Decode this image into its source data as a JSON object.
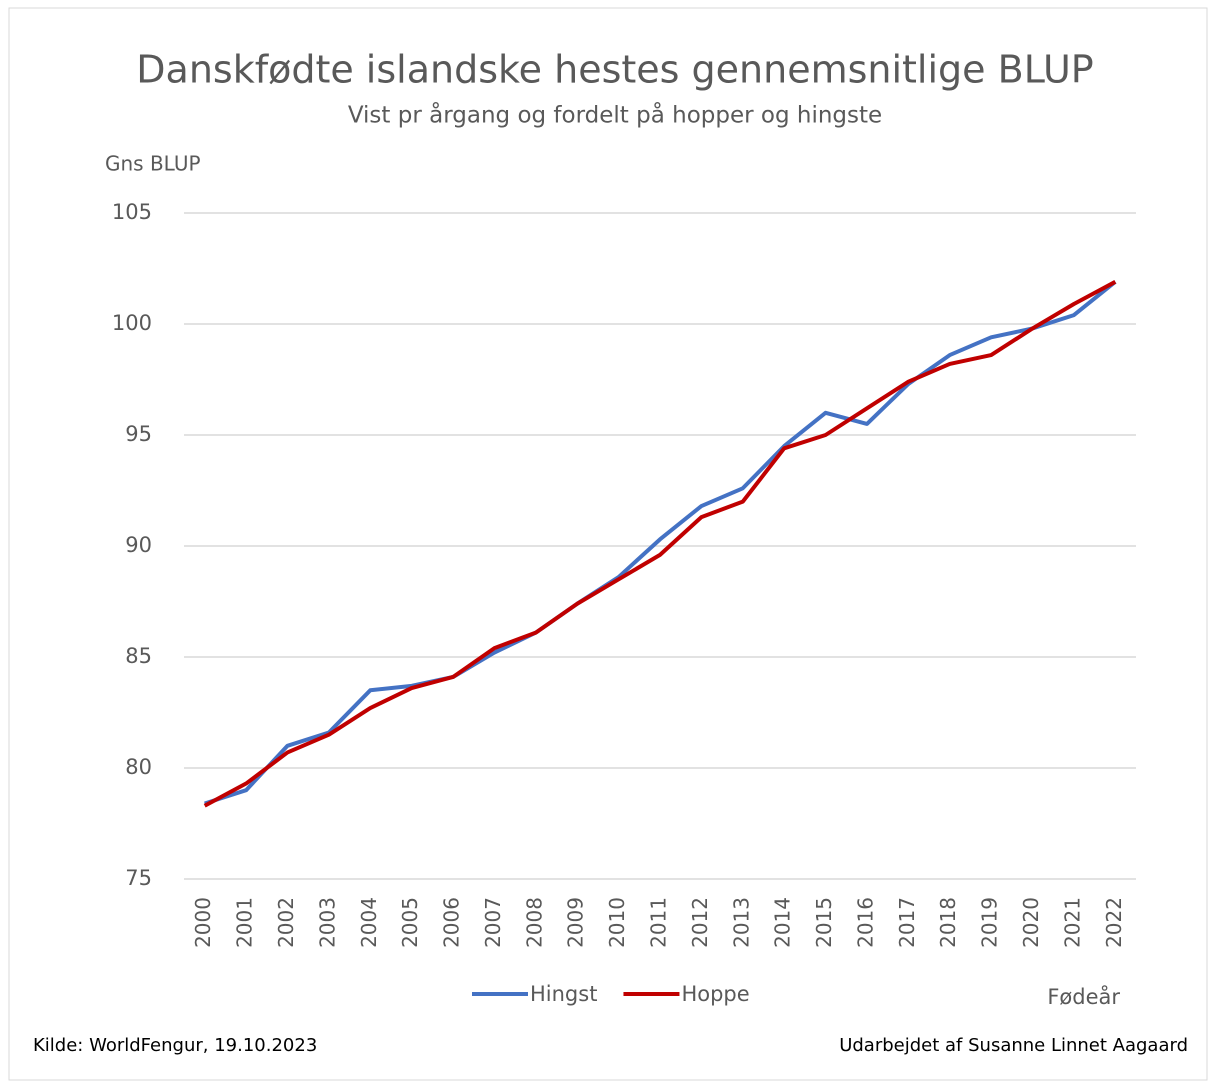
{
  "chart_data": {
    "type": "line",
    "title": "Danskfødte islandske hestes gennemsnitlige BLUP",
    "subtitle": "Vist pr årgang og fordelt på hopper og hingste",
    "y_label": "Gns BLUP",
    "x_label": "Fødeår",
    "source": "Kilde: WorldFengur, 19.10.2023",
    "credit": "Udarbejdet af Susanne Linnet Aagaard",
    "categories": [
      "2000",
      "2001",
      "2002",
      "2003",
      "2004",
      "2005",
      "2006",
      "2007",
      "2008",
      "2009",
      "2010",
      "2011",
      "2012",
      "2013",
      "2014",
      "2015",
      "2016",
      "2017",
      "2018",
      "2019",
      "2020",
      "2021",
      "2022"
    ],
    "series": [
      {
        "name": "Hingst",
        "color": "#4472c4",
        "values": [
          78.4,
          79.0,
          81.0,
          81.6,
          83.5,
          83.7,
          84.1,
          85.2,
          86.1,
          87.4,
          88.6,
          90.3,
          91.8,
          92.6,
          94.5,
          96.0,
          95.5,
          97.3,
          98.6,
          99.4,
          99.8,
          100.4,
          101.9
        ]
      },
      {
        "name": "Hoppe",
        "color": "#c00000",
        "values": [
          78.3,
          79.3,
          80.7,
          81.5,
          82.7,
          83.6,
          84.1,
          85.4,
          86.1,
          87.4,
          88.5,
          89.6,
          91.3,
          92.0,
          94.4,
          95.0,
          96.2,
          97.4,
          98.2,
          98.6,
          99.8,
          100.9,
          101.9
        ]
      }
    ],
    "ylim": [
      75,
      105
    ],
    "yticks": [
      75,
      80,
      85,
      90,
      95,
      100,
      105
    ],
    "grid": true,
    "legend": "bottom"
  }
}
